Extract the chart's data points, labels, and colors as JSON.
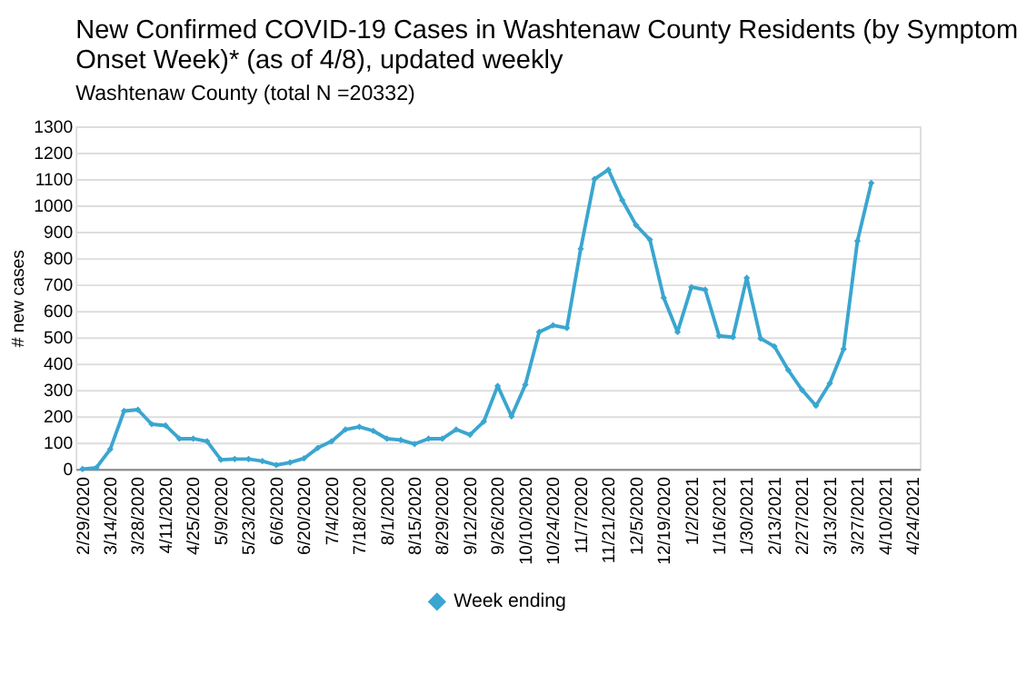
{
  "chart_data": {
    "type": "line",
    "title": "New Confirmed COVID-19 Cases in Washtenaw County Residents (by Symptom Onset Week)* (as of 4/8), updated weekly",
    "subtitle": "Washtenaw County (total N =20332)",
    "ylabel": "# new cases",
    "categories": [
      "2/29/2020",
      null,
      "3/14/2020",
      null,
      "3/28/2020",
      null,
      "4/11/2020",
      null,
      "4/25/2020",
      null,
      "5/9/2020",
      null,
      "5/23/2020",
      null,
      "6/6/2020",
      null,
      "6/20/2020",
      null,
      "7/4/2020",
      null,
      "7/18/2020",
      null,
      "8/1/2020",
      null,
      "8/15/2020",
      null,
      "8/29/2020",
      null,
      "9/12/2020",
      null,
      "9/26/2020",
      null,
      "10/10/2020",
      null,
      "10/24/2020",
      null,
      "11/7/2020",
      null,
      "11/21/2020",
      null,
      "12/5/2020",
      null,
      "12/19/2020",
      null,
      "1/2/2021",
      null,
      "1/16/2021",
      null,
      "1/30/2021",
      null,
      "2/13/2021",
      null,
      "2/27/2021",
      null,
      "3/13/2021",
      null,
      "3/27/2021",
      null,
      "4/10/2021",
      null,
      "4/24/2021"
    ],
    "series": [
      {
        "name": "Week ending",
        "color": "#3aa6d0",
        "values": [
          0,
          5,
          75,
          220,
          225,
          170,
          165,
          115,
          115,
          105,
          35,
          38,
          38,
          30,
          15,
          25,
          40,
          80,
          105,
          150,
          160,
          145,
          115,
          110,
          95,
          115,
          115,
          150,
          130,
          180,
          315,
          200,
          320,
          520,
          545,
          535,
          835,
          1100,
          1135,
          1020,
          925,
          870,
          650,
          520,
          690,
          680,
          505,
          500,
          725,
          495,
          465,
          375,
          300,
          240,
          325,
          455,
          865,
          1085,
          null,
          null,
          null
        ]
      }
    ],
    "ylim": [
      0,
      1300
    ],
    "yticks": [
      0,
      100,
      200,
      300,
      400,
      500,
      600,
      700,
      800,
      900,
      1000,
      1100,
      1200,
      1300
    ],
    "grid": "y",
    "legend": "bottom",
    "marker": "diamond",
    "line_style": "solid"
  }
}
